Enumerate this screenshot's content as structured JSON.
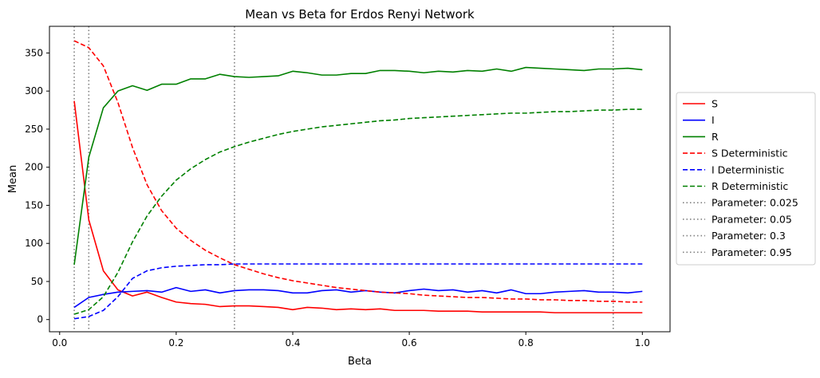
{
  "chart_data": {
    "type": "line",
    "title": "Mean vs Beta for Erdos Renyi Network",
    "xlabel": "Beta",
    "ylabel": "Mean",
    "xlim": [
      -0.0175,
      1.0475
    ],
    "ylim": [
      -16,
      385
    ],
    "x_ticks": [
      0.0,
      0.2,
      0.4,
      0.6,
      0.8,
      1.0
    ],
    "x_tick_labels": [
      "0.0",
      "0.2",
      "0.4",
      "0.6",
      "0.8",
      "1.0"
    ],
    "y_ticks": [
      0,
      50,
      100,
      150,
      200,
      250,
      300,
      350
    ],
    "y_tick_labels": [
      "0",
      "50",
      "100",
      "150",
      "200",
      "250",
      "300",
      "350"
    ],
    "grid": false,
    "legend_position": "outside-right",
    "x": [
      0.025,
      0.05,
      0.075,
      0.1,
      0.125,
      0.15,
      0.175,
      0.2,
      0.225,
      0.25,
      0.275,
      0.3,
      0.325,
      0.35,
      0.375,
      0.4,
      0.425,
      0.45,
      0.475,
      0.5,
      0.525,
      0.55,
      0.575,
      0.6,
      0.625,
      0.65,
      0.675,
      0.7,
      0.725,
      0.75,
      0.775,
      0.8,
      0.825,
      0.85,
      0.875,
      0.9,
      0.925,
      0.95,
      0.975,
      1.0
    ],
    "series": [
      {
        "name": "S",
        "color": "#ff0000",
        "dash": "solid",
        "values": [
          287,
          131,
          64,
          39,
          31,
          36,
          29,
          23,
          21,
          20,
          17,
          18,
          18,
          17,
          16,
          13,
          16,
          15,
          13,
          14,
          13,
          14,
          12,
          12,
          12,
          11,
          11,
          11,
          10,
          10,
          10,
          10,
          10,
          9,
          9,
          9,
          9,
          9,
          9,
          9
        ]
      },
      {
        "name": "I",
        "color": "#0000ff",
        "dash": "solid",
        "values": [
          16,
          29,
          33,
          36,
          37,
          38,
          36,
          42,
          37,
          39,
          35,
          38,
          39,
          39,
          38,
          35,
          35,
          38,
          39,
          36,
          38,
          36,
          35,
          38,
          40,
          38,
          39,
          36,
          38,
          35,
          39,
          34,
          34,
          36,
          37,
          38,
          36,
          36,
          35,
          37
        ]
      },
      {
        "name": "R",
        "color": "#008000",
        "dash": "solid",
        "values": [
          72,
          213,
          278,
          300,
          307,
          301,
          309,
          309,
          316,
          316,
          322,
          319,
          318,
          319,
          320,
          326,
          324,
          321,
          321,
          323,
          323,
          327,
          327,
          326,
          324,
          326,
          325,
          327,
          326,
          329,
          326,
          331,
          330,
          329,
          328,
          327,
          329,
          329,
          330,
          328
        ]
      },
      {
        "name": "S Deterministic",
        "color": "#ff0000",
        "dash": "dashed",
        "values": [
          366,
          357,
          333,
          285,
          226,
          177,
          143,
          120,
          104,
          91,
          81,
          72,
          66,
          60,
          55,
          51,
          48,
          45,
          42,
          40,
          38,
          36,
          35,
          34,
          32,
          31,
          30,
          29,
          29,
          28,
          27,
          27,
          26,
          26,
          25,
          25,
          24,
          24,
          23,
          23
        ]
      },
      {
        "name": "I Deterministic",
        "color": "#0000ff",
        "dash": "dashed",
        "values": [
          1,
          4,
          12,
          30,
          54,
          64,
          68,
          70,
          71,
          72,
          72,
          73,
          73,
          73,
          73,
          73,
          73,
          73,
          73,
          73,
          73,
          73,
          73,
          73,
          73,
          73,
          73,
          73,
          73,
          73,
          73,
          73,
          73,
          73,
          73,
          73,
          73,
          73,
          73,
          73
        ]
      },
      {
        "name": "R Deterministic",
        "color": "#008000",
        "dash": "dashed",
        "values": [
          7,
          13,
          30,
          62,
          102,
          136,
          162,
          183,
          198,
          210,
          220,
          227,
          233,
          238,
          243,
          247,
          250,
          253,
          255,
          257,
          259,
          261,
          262,
          264,
          265,
          266,
          267,
          268,
          269,
          270,
          271,
          271,
          272,
          273,
          273,
          274,
          275,
          275,
          276,
          276
        ]
      }
    ],
    "vlines": [
      {
        "name": "Parameter: 0.025",
        "x": 0.025,
        "color": "#808080"
      },
      {
        "name": "Parameter: 0.05",
        "x": 0.05,
        "color": "#808080"
      },
      {
        "name": "Parameter: 0.3",
        "x": 0.3,
        "color": "#808080"
      },
      {
        "name": "Parameter: 0.95",
        "x": 0.95,
        "color": "#808080"
      }
    ]
  }
}
